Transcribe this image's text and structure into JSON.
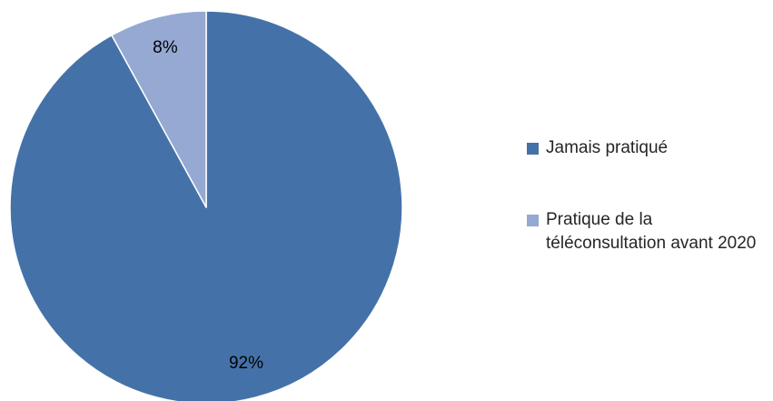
{
  "chart_data": {
    "type": "pie",
    "title": "",
    "start_angle_deg": 0,
    "direction": "clockwise",
    "legend_position": "right",
    "slices": [
      {
        "name": "Jamais pratiqué",
        "value": 92,
        "label": "92%",
        "color": "#4472A8"
      },
      {
        "name": "Pratique de la téléconsultation avant 2020",
        "value": 8,
        "label": "8%",
        "color": "#95A9D3"
      }
    ]
  }
}
